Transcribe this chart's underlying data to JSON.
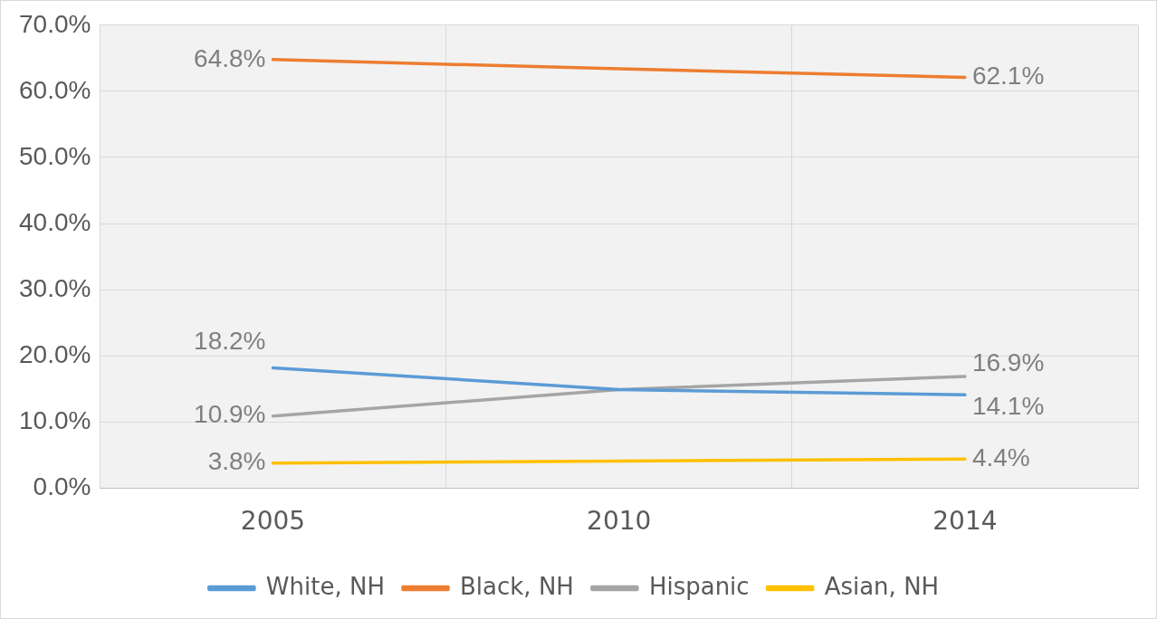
{
  "chart_data": {
    "type": "line",
    "categories": [
      "2005",
      "2010",
      "2014"
    ],
    "series": [
      {
        "name": "White, NH",
        "color": "#5b9bd5",
        "values": [
          18.2,
          14.9,
          14.1
        ],
        "value_labels": [
          "18.2%",
          null,
          "14.1%"
        ]
      },
      {
        "name": "Black, NH",
        "color": "#ed7d31",
        "values": [
          64.8,
          63.4,
          62.1
        ],
        "value_labels": [
          "64.8%",
          null,
          "62.1%"
        ]
      },
      {
        "name": "Hispanic",
        "color": "#a5a5a5",
        "values": [
          10.9,
          14.9,
          16.9
        ],
        "value_labels": [
          "10.9%",
          null,
          "16.9%"
        ]
      },
      {
        "name": "Asian, NH",
        "color": "#ffc000",
        "values": [
          3.8,
          4.1,
          4.4
        ],
        "value_labels": [
          "3.8%",
          null,
          "4.4%"
        ]
      }
    ],
    "ylim": [
      0,
      70
    ],
    "yticks": [
      {
        "value": 0,
        "label": "0.0%"
      },
      {
        "value": 10,
        "label": "10.0%"
      },
      {
        "value": 20,
        "label": "20.0%"
      },
      {
        "value": 30,
        "label": "30.0%"
      },
      {
        "value": 40,
        "label": "40.0%"
      },
      {
        "value": 50,
        "label": "50.0%"
      },
      {
        "value": 60,
        "label": "60.0%"
      },
      {
        "value": 70,
        "label": "70.0%"
      }
    ],
    "grid": true,
    "legend": "bottom",
    "marker": "none",
    "line_style": "solid"
  }
}
